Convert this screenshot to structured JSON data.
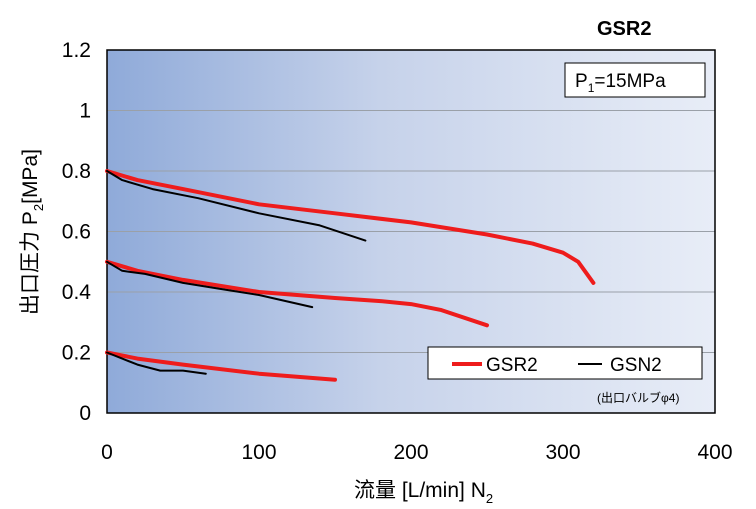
{
  "chart_data": {
    "type": "line",
    "title": "GSR2",
    "xlabel_main": "流量 [L/min] N",
    "xlabel_sub": "2",
    "ylabel_main": "出口圧力 P",
    "ylabel_sub": "2",
    "ylabel_unit": "[MPa]",
    "xlim": [
      0,
      400
    ],
    "ylim": [
      0,
      1.2
    ],
    "x_ticks": [
      "0",
      "100",
      "200",
      "300",
      "400"
    ],
    "y_ticks": [
      "0",
      "0.2",
      "0.4",
      "0.6",
      "0.8",
      "1",
      "1.2"
    ],
    "grid": "horizontal",
    "inset_label": {
      "main": "P",
      "sub": "1",
      "rest": "=15MPa"
    },
    "note": "(出口バルブφ4)",
    "legend": {
      "position": "bottom-right",
      "entries": [
        {
          "name": "GSR2",
          "color": "#ee1c1c"
        },
        {
          "name": "GSN2",
          "color": "#000000"
        }
      ]
    },
    "series": [
      {
        "name": "GSR2",
        "color": "#ee1c1c",
        "curves": [
          [
            [
              0,
              0.8
            ],
            [
              20,
              0.77
            ],
            [
              50,
              0.74
            ],
            [
              100,
              0.69
            ],
            [
              150,
              0.66
            ],
            [
              200,
              0.63
            ],
            [
              250,
              0.59
            ],
            [
              280,
              0.56
            ],
            [
              300,
              0.53
            ],
            [
              310,
              0.5
            ],
            [
              320,
              0.43
            ]
          ],
          [
            [
              0,
              0.5
            ],
            [
              20,
              0.47
            ],
            [
              50,
              0.44
            ],
            [
              100,
              0.4
            ],
            [
              150,
              0.38
            ],
            [
              180,
              0.37
            ],
            [
              200,
              0.36
            ],
            [
              220,
              0.34
            ],
            [
              250,
              0.29
            ]
          ],
          [
            [
              0,
              0.2
            ],
            [
              20,
              0.18
            ],
            [
              50,
              0.16
            ],
            [
              100,
              0.13
            ],
            [
              150,
              0.11
            ]
          ]
        ]
      },
      {
        "name": "GSN2",
        "color": "#000000",
        "curves": [
          [
            [
              0,
              0.8
            ],
            [
              10,
              0.77
            ],
            [
              30,
              0.74
            ],
            [
              60,
              0.71
            ],
            [
              100,
              0.66
            ],
            [
              140,
              0.62
            ],
            [
              170,
              0.57
            ]
          ],
          [
            [
              0,
              0.5
            ],
            [
              10,
              0.47
            ],
            [
              25,
              0.46
            ],
            [
              50,
              0.43
            ],
            [
              75,
              0.41
            ],
            [
              100,
              0.39
            ],
            [
              135,
              0.35
            ]
          ],
          [
            [
              0,
              0.2
            ],
            [
              10,
              0.18
            ],
            [
              20,
              0.16
            ],
            [
              35,
              0.14
            ],
            [
              50,
              0.14
            ],
            [
              65,
              0.13
            ]
          ]
        ]
      }
    ]
  }
}
